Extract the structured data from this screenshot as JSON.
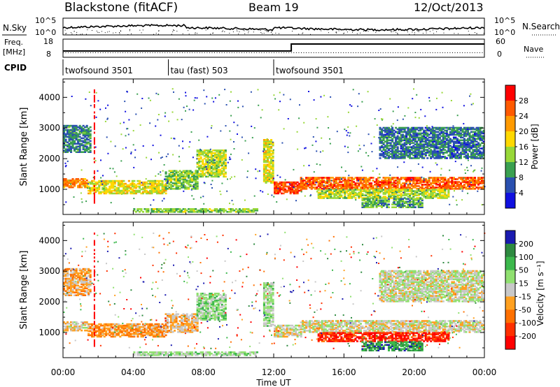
{
  "header": {
    "station": "Blackstone (fitACF)",
    "beam": "Beam 19",
    "date": "12/Oct/2013"
  },
  "strip": {
    "nsky_label": "N.Sky",
    "nsky_ticks": [
      "10^5",
      "10^0"
    ],
    "nsearch_label": "N.Search",
    "nsearch_ticks": [
      "10^5",
      "10^0"
    ],
    "freq_label_line1": "Freq.",
    "freq_label_line2": "[MHz]",
    "freq_ticks": [
      "18",
      "8"
    ],
    "nave_label": "Nave",
    "nave_ticks": [
      "60",
      "0"
    ],
    "cpid_label": "CPID"
  },
  "cpid_segments": [
    {
      "start_hour": 0,
      "end_hour": 6,
      "label": "twofsound 3501"
    },
    {
      "start_hour": 6,
      "end_hour": 12,
      "label": "tau (fast) 503"
    },
    {
      "start_hour": 12,
      "end_hour": 24,
      "label": "twofsound 3501"
    }
  ],
  "axes": {
    "x_label": "Time UT",
    "x_ticks": [
      "00:00",
      "04:00",
      "08:00",
      "12:00",
      "16:00",
      "20:00",
      "00:00"
    ],
    "y_label": "Slant Range [km]",
    "y_ticks": [
      "1000",
      "2000",
      "3000",
      "4000"
    ]
  },
  "colorbars": {
    "power": {
      "label": "Power [dB]",
      "ticks": [
        "28",
        "24",
        "20",
        "16",
        "12",
        "8",
        "4"
      ],
      "colors": [
        "#ff0000",
        "#ff5a00",
        "#ff9a00",
        "#ffd800",
        "#98d838",
        "#3aa050",
        "#2a50b0",
        "#1010e0"
      ]
    },
    "velocity": {
      "label": "Velocity [m s⁻¹]",
      "ticks": [
        "200",
        "100",
        "50",
        "15",
        "-15",
        "-50",
        "-100",
        "-200"
      ],
      "colors": [
        "#1a1ab0",
        "#2e8a40",
        "#3cb84c",
        "#90e070",
        "#c8c8c8",
        "#ffa020",
        "#ff7000",
        "#ff3000",
        "#ff0000"
      ]
    }
  },
  "chart_data": [
    {
      "type": "heatmap",
      "title": "Power [dB]",
      "xlabel": "Time UT",
      "ylabel": "Slant Range [km]",
      "xlim_hours": [
        0,
        24
      ],
      "ylim_km": [
        180,
        4600
      ],
      "color_range_db": [
        0,
        30
      ],
      "bands": [
        {
          "t": [
            0,
            1.4
          ],
          "r0": 1050,
          "r1": 1350,
          "v": 22
        },
        {
          "t": [
            1.4,
            5.8
          ],
          "r0": 850,
          "r1": 1300,
          "v": 16
        },
        {
          "t": [
            5.8,
            7.6
          ],
          "r0": 1000,
          "r1": 1600,
          "v": 12
        },
        {
          "t": [
            7.6,
            9.2
          ],
          "r0": 1400,
          "r1": 2300,
          "v": 14
        },
        {
          "t": [
            11.4,
            11.9
          ],
          "r0": 1200,
          "r1": 2600,
          "v": 16
        },
        {
          "t": [
            12,
            13.5
          ],
          "r0": 850,
          "r1": 1250,
          "v": 26
        },
        {
          "t": [
            13.5,
            24
          ],
          "r0": 1000,
          "r1": 1400,
          "v": 24
        },
        {
          "t": [
            14.5,
            22
          ],
          "r0": 700,
          "r1": 1000,
          "v": 14
        },
        {
          "t": [
            17,
            20.5
          ],
          "r0": 400,
          "r1": 700,
          "v": 10
        },
        {
          "t": [
            0,
            1.6
          ],
          "r0": 2200,
          "r1": 3100,
          "v": 8
        },
        {
          "t": [
            18,
            24
          ],
          "r0": 2000,
          "r1": 3000,
          "v": 7
        },
        {
          "t": [
            4,
            11
          ],
          "r0": 250,
          "r1": 380,
          "v": 12
        }
      ]
    },
    {
      "type": "heatmap",
      "title": "Velocity [m s⁻¹]",
      "xlabel": "Time UT",
      "ylabel": "Slant Range [km]",
      "xlim_hours": [
        0,
        24
      ],
      "ylim_km": [
        180,
        4600
      ],
      "color_range_ms": [
        -200,
        200
      ],
      "bands": [
        {
          "t": [
            0,
            1.4
          ],
          "r0": 1050,
          "r1": 1350,
          "v": -10
        },
        {
          "t": [
            1.4,
            5.8
          ],
          "r0": 850,
          "r1": 1300,
          "v": -60
        },
        {
          "t": [
            5.8,
            7.6
          ],
          "r0": 1000,
          "r1": 1600,
          "v": -30
        },
        {
          "t": [
            7.6,
            9.2
          ],
          "r0": 1400,
          "r1": 2300,
          "v": 40
        },
        {
          "t": [
            11.4,
            11.9
          ],
          "r0": 1200,
          "r1": 2600,
          "v": 30
        },
        {
          "t": [
            12,
            13.5
          ],
          "r0": 850,
          "r1": 1250,
          "v": -5
        },
        {
          "t": [
            13.5,
            24
          ],
          "r0": 1000,
          "r1": 1400,
          "v": 0
        },
        {
          "t": [
            14.5,
            22
          ],
          "r0": 700,
          "r1": 1000,
          "v": -150
        },
        {
          "t": [
            17,
            20.5
          ],
          "r0": 400,
          "r1": 700,
          "v": 120
        },
        {
          "t": [
            0,
            1.6
          ],
          "r0": 2200,
          "r1": 3100,
          "v": -40
        },
        {
          "t": [
            18,
            24
          ],
          "r0": 2000,
          "r1": 3000,
          "v": 10
        },
        {
          "t": [
            4,
            11
          ],
          "r0": 250,
          "r1": 380,
          "v": 30
        }
      ]
    }
  ]
}
